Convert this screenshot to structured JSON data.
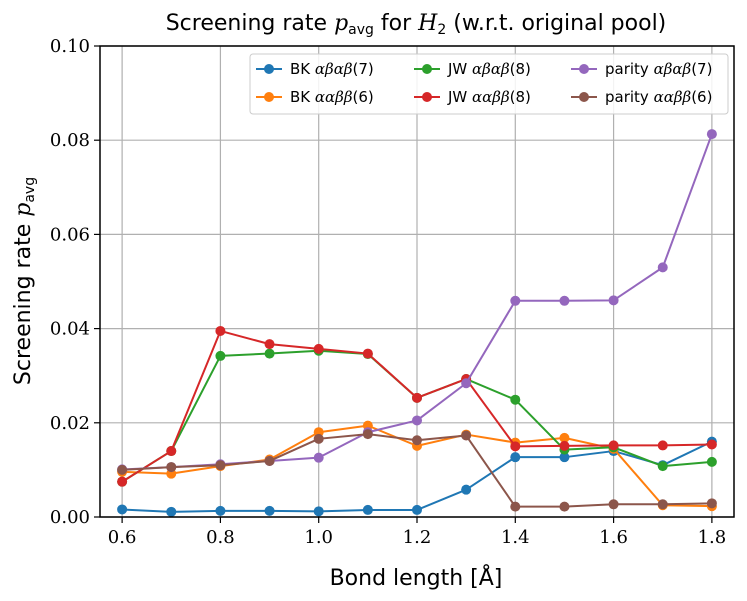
{
  "chart_data": {
    "type": "line",
    "title_prefix": "Screening rate ",
    "title_math": "p",
    "title_math_sub": "avg",
    "title_mid": " for ",
    "title_math2": "H",
    "title_math2_sub": "2",
    "title_suffix": " (w.r.t. original pool)",
    "xlabel": "Bond length [Å]",
    "ylabel_prefix": "Screening rate ",
    "ylabel_math": "p",
    "ylabel_math_sub": "avg",
    "xlim": [
      0.555,
      1.845
    ],
    "ylim": [
      0.0,
      0.1
    ],
    "xticks": [
      0.6,
      0.8,
      1.0,
      1.2,
      1.4,
      1.6,
      1.8
    ],
    "xtick_labels": [
      "0.6",
      "0.8",
      "1.0",
      "1.2",
      "1.4",
      "1.6",
      "1.8"
    ],
    "yticks": [
      0.0,
      0.02,
      0.04,
      0.06,
      0.08,
      0.1
    ],
    "ytick_labels": [
      "0.00",
      "0.02",
      "0.04",
      "0.06",
      "0.08",
      "0.10"
    ],
    "grid": true,
    "legend_position": "top-right",
    "x": [
      0.6,
      0.7,
      0.8,
      0.9,
      1.0,
      1.1,
      1.2,
      1.3,
      1.4,
      1.5,
      1.6,
      1.7,
      1.8
    ],
    "series": [
      {
        "name_prefix": "BK ",
        "name_math": "αβαβ",
        "name_suffix": "(7)",
        "color": "#1f77b4",
        "values": [
          0.0016,
          0.0011,
          0.0013,
          0.0013,
          0.0012,
          0.0015,
          0.0015,
          0.0058,
          0.0127,
          0.0127,
          0.014,
          0.011,
          0.016
        ]
      },
      {
        "name_prefix": "BK ",
        "name_math": "ααββ",
        "name_suffix": "(6)",
        "color": "#ff7f0e",
        "values": [
          0.0096,
          0.0092,
          0.0108,
          0.0122,
          0.018,
          0.0194,
          0.0151,
          0.0175,
          0.0158,
          0.0168,
          0.0145,
          0.0025,
          0.0023
        ]
      },
      {
        "name_prefix": "JW ",
        "name_math": "αβαβ",
        "name_suffix": "(8)",
        "color": "#2ca02c",
        "values": [
          0.0075,
          0.014,
          0.0342,
          0.0347,
          0.0353,
          0.0346,
          0.0253,
          0.0293,
          0.0249,
          0.0143,
          0.0148,
          0.0108,
          0.0117
        ]
      },
      {
        "name_prefix": "JW ",
        "name_math": "ααββ",
        "name_suffix": "(8)",
        "color": "#d62728",
        "values": [
          0.0075,
          0.014,
          0.0395,
          0.0367,
          0.0357,
          0.0347,
          0.0253,
          0.0293,
          0.015,
          0.0151,
          0.0152,
          0.0152,
          0.0154
        ]
      },
      {
        "name_prefix": "parity ",
        "name_math": "αβαβ",
        "name_suffix": "(7)",
        "color": "#9467bd",
        "values": [
          0.0101,
          0.0106,
          0.0112,
          0.0119,
          0.0126,
          0.018,
          0.0205,
          0.0284,
          0.0459,
          0.0459,
          0.046,
          0.053,
          0.0813
        ]
      },
      {
        "name_prefix": "parity ",
        "name_math": "ααββ",
        "name_suffix": "(6)",
        "color": "#8c564b",
        "values": [
          0.01,
          0.0106,
          0.011,
          0.0119,
          0.0166,
          0.0176,
          0.0163,
          0.0173,
          0.0022,
          0.0022,
          0.0027,
          0.0027,
          0.0029
        ]
      }
    ]
  }
}
